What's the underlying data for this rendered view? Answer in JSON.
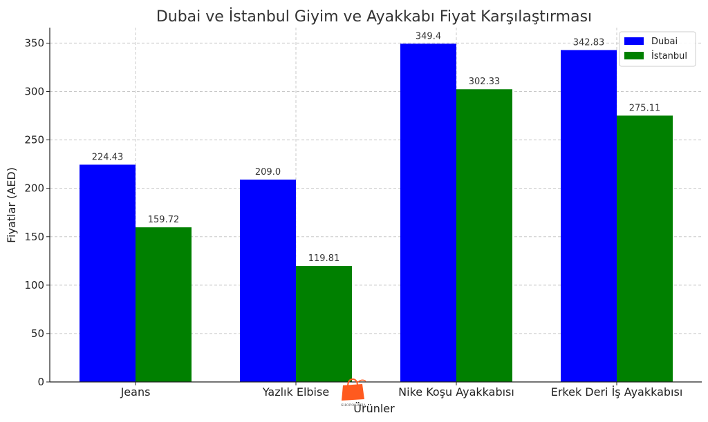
{
  "chart_data": {
    "type": "bar",
    "title": "Dubai ve İstanbul Giyim ve Ayakkabı Fiyat Karşılaştırması",
    "xlabel": "Ürünler",
    "ylabel": "Fiyatlar (AED)",
    "categories": [
      "Jeans",
      "Yazlık Elbise",
      "Nike Koşu Ayakkabısı",
      "Erkek Deri İş Ayakkabısı"
    ],
    "series": [
      {
        "name": "Dubai",
        "color": "#0000ff",
        "values": [
          224.43,
          209.0,
          349.4,
          342.83
        ],
        "labels": [
          "224.43",
          "209.0",
          "349.4",
          "342.83"
        ]
      },
      {
        "name": "İstanbul",
        "color": "#008000",
        "values": [
          159.72,
          119.81,
          302.33,
          275.11
        ],
        "labels": [
          "159.72",
          "119.81",
          "302.33",
          "275.11"
        ]
      }
    ],
    "ylim": [
      0,
      366
    ],
    "yticks": [
      0,
      50,
      100,
      150,
      200,
      250,
      300,
      350
    ],
    "grid": true,
    "legend_position": "top-right"
  },
  "watermark": {
    "icon": "shopping-bag-icon",
    "text": "SHOPOLISHA",
    "color": "#ff5a1f"
  }
}
